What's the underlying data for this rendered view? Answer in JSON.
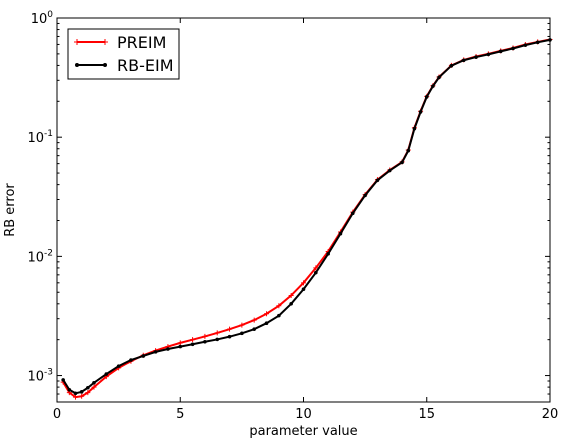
{
  "chart_data": {
    "type": "line",
    "title": "",
    "xlabel": "parameter value",
    "ylabel": "RB error",
    "xlim": [
      0,
      20
    ],
    "ylim": [
      0.0006,
      1
    ],
    "yscale": "log",
    "grid": false,
    "legend_position": "top-left",
    "x_ticks": [
      {
        "value": 0,
        "label": "0"
      },
      {
        "value": 5,
        "label": "5"
      },
      {
        "value": 10,
        "label": "10"
      },
      {
        "value": 15,
        "label": "15"
      },
      {
        "value": 20,
        "label": "20"
      }
    ],
    "y_ticks": [
      {
        "value": 0.001,
        "base": "10",
        "exp": "-3"
      },
      {
        "value": 0.01,
        "base": "10",
        "exp": "-2"
      },
      {
        "value": 0.1,
        "base": "10",
        "exp": "-1"
      },
      {
        "value": 1,
        "base": "10",
        "exp": "0"
      }
    ],
    "series": [
      {
        "name": "PREIM",
        "color": "#ff0000",
        "marker": "plus",
        "x": [
          0.25,
          0.5,
          0.75,
          1,
          1.25,
          1.5,
          2,
          2.5,
          3,
          3.5,
          4,
          4.5,
          5,
          5.5,
          6,
          6.5,
          7,
          7.5,
          8,
          8.5,
          9,
          9.5,
          10,
          10.5,
          11,
          11.5,
          12,
          12.5,
          13,
          13.5,
          14,
          14.25,
          14.5,
          14.75,
          15,
          15.25,
          15.5,
          16,
          16.5,
          17,
          17.5,
          18,
          18.5,
          19,
          19.5,
          20
        ],
        "y": [
          0.00088,
          0.00072,
          0.00066,
          0.00067,
          0.00072,
          0.0008,
          0.00098,
          0.00116,
          0.00132,
          0.00148,
          0.00162,
          0.00175,
          0.00188,
          0.002,
          0.00213,
          0.00228,
          0.00245,
          0.00265,
          0.00292,
          0.0033,
          0.00385,
          0.0047,
          0.006,
          0.008,
          0.011,
          0.016,
          0.0235,
          0.033,
          0.044,
          0.053,
          0.062,
          0.078,
          0.12,
          0.165,
          0.22,
          0.27,
          0.32,
          0.4,
          0.445,
          0.475,
          0.5,
          0.53,
          0.56,
          0.6,
          0.63,
          0.66
        ]
      },
      {
        "name": "RB-EIM",
        "color": "#000000",
        "marker": "dot",
        "x": [
          0.25,
          0.5,
          0.75,
          1,
          1.25,
          1.5,
          2,
          2.5,
          3,
          3.5,
          4,
          4.5,
          5,
          5.5,
          6,
          6.5,
          7,
          7.5,
          8,
          8.5,
          9,
          9.5,
          10,
          10.5,
          11,
          11.5,
          12,
          12.5,
          13,
          13.5,
          14,
          14.25,
          14.5,
          14.75,
          15,
          15.25,
          15.5,
          16,
          16.5,
          17,
          17.5,
          18,
          18.5,
          19,
          19.5,
          20
        ],
        "y": [
          0.00092,
          0.00076,
          0.00071,
          0.00073,
          0.00079,
          0.00087,
          0.00103,
          0.0012,
          0.00135,
          0.00146,
          0.00158,
          0.00167,
          0.00175,
          0.00183,
          0.00192,
          0.00201,
          0.00212,
          0.00226,
          0.00245,
          0.00275,
          0.00318,
          0.004,
          0.0053,
          0.0073,
          0.0105,
          0.0155,
          0.023,
          0.0325,
          0.0435,
          0.0525,
          0.0615,
          0.077,
          0.118,
          0.163,
          0.218,
          0.268,
          0.318,
          0.398,
          0.442,
          0.47,
          0.495,
          0.525,
          0.555,
          0.592,
          0.625,
          0.655
        ]
      }
    ]
  }
}
